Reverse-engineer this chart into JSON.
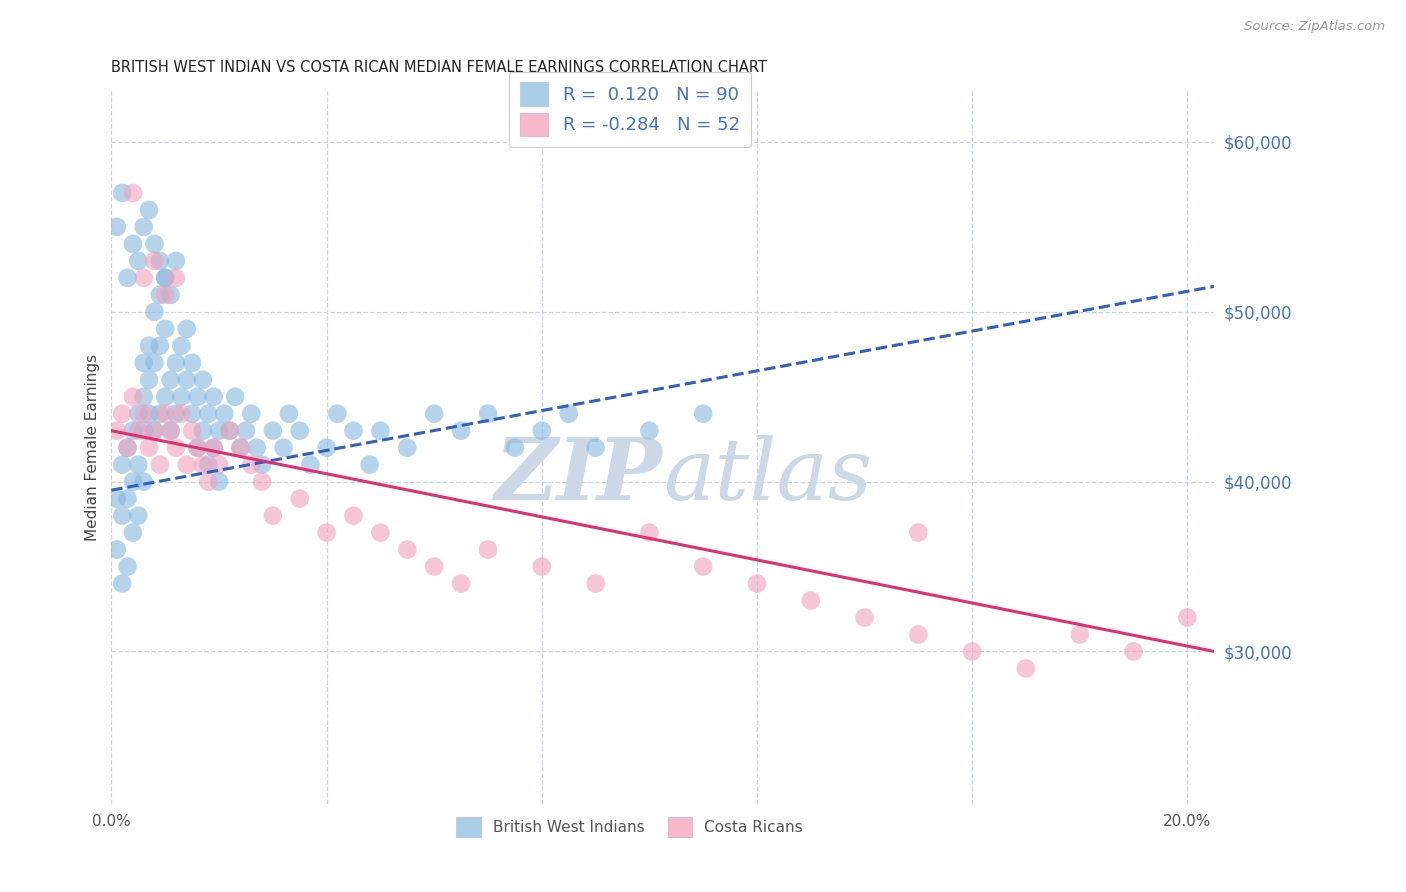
{
  "title": "BRITISH WEST INDIAN VS COSTA RICAN MEDIAN FEMALE EARNINGS CORRELATION CHART",
  "source": "Source: ZipAtlas.com",
  "ylabel": "Median Female Earnings",
  "xlim": [
    0.0,
    0.205
  ],
  "ylim": [
    21000,
    63000
  ],
  "ytick_values": [
    30000,
    40000,
    50000,
    60000
  ],
  "ytick_labels": [
    "$30,000",
    "$40,000",
    "$50,000",
    "$60,000"
  ],
  "xtick_values": [
    0.0,
    0.04,
    0.08,
    0.12,
    0.16,
    0.2
  ],
  "xtick_labels": [
    "0.0%",
    "",
    "",
    "",
    "",
    "20.0%"
  ],
  "blue_scatter_color": "#85b8e0",
  "pink_scatter_color": "#f0a0bc",
  "blue_legend_color": "#aacde8",
  "pink_legend_color": "#f8b8cc",
  "blue_line_color": "#3060c0",
  "pink_line_color": "#e03070",
  "watermark_color": "#ccd8e8",
  "grid_color": "#c8d4e4",
  "background_color": "#ffffff",
  "ytick_color": "#4472c4",
  "title_color": "#222222",
  "source_color": "#999999",
  "ylabel_color": "#444444",
  "blue_line_y0": 39500,
  "blue_line_y1": 51500,
  "pink_line_y0": 43000,
  "pink_line_y1": 30000,
  "blue_points_x": [
    0.001,
    0.001,
    0.002,
    0.002,
    0.002,
    0.003,
    0.003,
    0.003,
    0.004,
    0.004,
    0.004,
    0.005,
    0.005,
    0.005,
    0.006,
    0.006,
    0.006,
    0.006,
    0.007,
    0.007,
    0.007,
    0.008,
    0.008,
    0.008,
    0.009,
    0.009,
    0.009,
    0.01,
    0.01,
    0.01,
    0.011,
    0.011,
    0.012,
    0.012,
    0.013,
    0.013,
    0.014,
    0.014,
    0.015,
    0.015,
    0.016,
    0.016,
    0.017,
    0.017,
    0.018,
    0.018,
    0.019,
    0.019,
    0.02,
    0.02,
    0.021,
    0.022,
    0.023,
    0.024,
    0.025,
    0.026,
    0.027,
    0.028,
    0.03,
    0.032,
    0.033,
    0.035,
    0.037,
    0.04,
    0.042,
    0.045,
    0.048,
    0.05,
    0.055,
    0.06,
    0.065,
    0.07,
    0.075,
    0.08,
    0.085,
    0.09,
    0.1,
    0.11,
    0.001,
    0.002,
    0.003,
    0.004,
    0.005,
    0.006,
    0.007,
    0.008,
    0.009,
    0.01,
    0.011,
    0.012
  ],
  "blue_points_y": [
    39000,
    36000,
    38000,
    41000,
    34000,
    42000,
    39000,
    35000,
    43000,
    40000,
    37000,
    44000,
    41000,
    38000,
    45000,
    47000,
    43000,
    40000,
    46000,
    48000,
    44000,
    47000,
    50000,
    43000,
    48000,
    51000,
    44000,
    49000,
    52000,
    45000,
    46000,
    43000,
    47000,
    44000,
    48000,
    45000,
    49000,
    46000,
    47000,
    44000,
    45000,
    42000,
    46000,
    43000,
    44000,
    41000,
    45000,
    42000,
    43000,
    40000,
    44000,
    43000,
    45000,
    42000,
    43000,
    44000,
    42000,
    41000,
    43000,
    42000,
    44000,
    43000,
    41000,
    42000,
    44000,
    43000,
    41000,
    43000,
    42000,
    44000,
    43000,
    44000,
    42000,
    43000,
    44000,
    42000,
    43000,
    44000,
    55000,
    57000,
    52000,
    54000,
    53000,
    55000,
    56000,
    54000,
    53000,
    52000,
    51000,
    53000
  ],
  "pink_points_x": [
    0.001,
    0.002,
    0.003,
    0.004,
    0.005,
    0.006,
    0.007,
    0.008,
    0.009,
    0.01,
    0.011,
    0.012,
    0.013,
    0.014,
    0.015,
    0.016,
    0.017,
    0.018,
    0.019,
    0.02,
    0.022,
    0.024,
    0.026,
    0.028,
    0.03,
    0.035,
    0.04,
    0.045,
    0.05,
    0.055,
    0.06,
    0.065,
    0.07,
    0.08,
    0.09,
    0.1,
    0.11,
    0.12,
    0.13,
    0.14,
    0.15,
    0.16,
    0.17,
    0.18,
    0.19,
    0.2,
    0.004,
    0.006,
    0.008,
    0.01,
    0.012,
    0.15
  ],
  "pink_points_y": [
    43000,
    44000,
    42000,
    45000,
    43000,
    44000,
    42000,
    43000,
    41000,
    44000,
    43000,
    42000,
    44000,
    41000,
    43000,
    42000,
    41000,
    40000,
    42000,
    41000,
    43000,
    42000,
    41000,
    40000,
    38000,
    39000,
    37000,
    38000,
    37000,
    36000,
    35000,
    34000,
    36000,
    35000,
    34000,
    37000,
    35000,
    34000,
    33000,
    32000,
    31000,
    30000,
    29000,
    31000,
    30000,
    32000,
    57000,
    52000,
    53000,
    51000,
    52000,
    37000
  ]
}
